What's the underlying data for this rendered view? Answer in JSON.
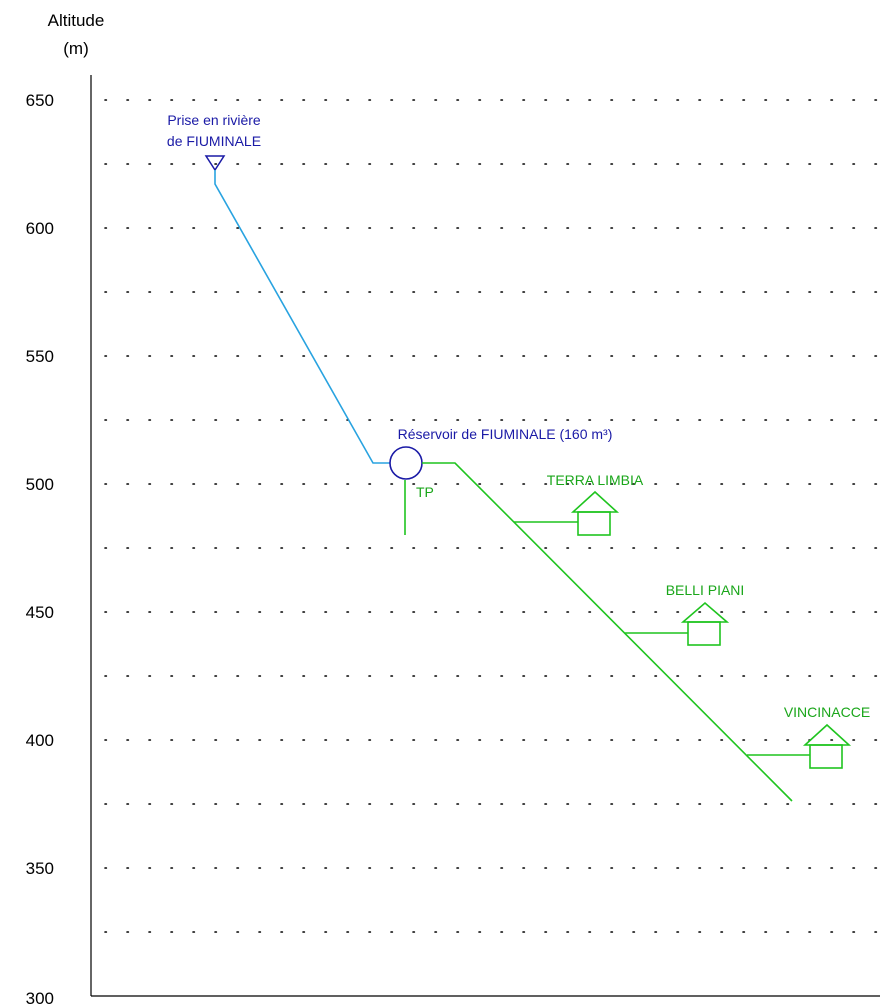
{
  "axis": {
    "title_line1": "Altitude",
    "title_line2": "(m)",
    "ticks": [
      650,
      600,
      550,
      500,
      450,
      400,
      350,
      300
    ],
    "gridlines": [
      650,
      625,
      600,
      575,
      550,
      525,
      500,
      475,
      450,
      425,
      400,
      375,
      350,
      325
    ]
  },
  "labels": {
    "intake_line1": "Prise en rivière",
    "intake_line2": "de FIUMINALE",
    "reservoir": "Réservoir de FIUMINALE (160 m³)",
    "tp": "TP",
    "terra_limbia": "TERRA LIMBIA",
    "belli_piani": "BELLI PIANI",
    "vincinacce": "VINCINACCE"
  },
  "colors": {
    "intake_pipe": "#29a3e0",
    "distribution": "#1fc41f",
    "label_blue": "#1a1aa6",
    "label_green": "#1aa61a",
    "grid": "#000000"
  }
}
